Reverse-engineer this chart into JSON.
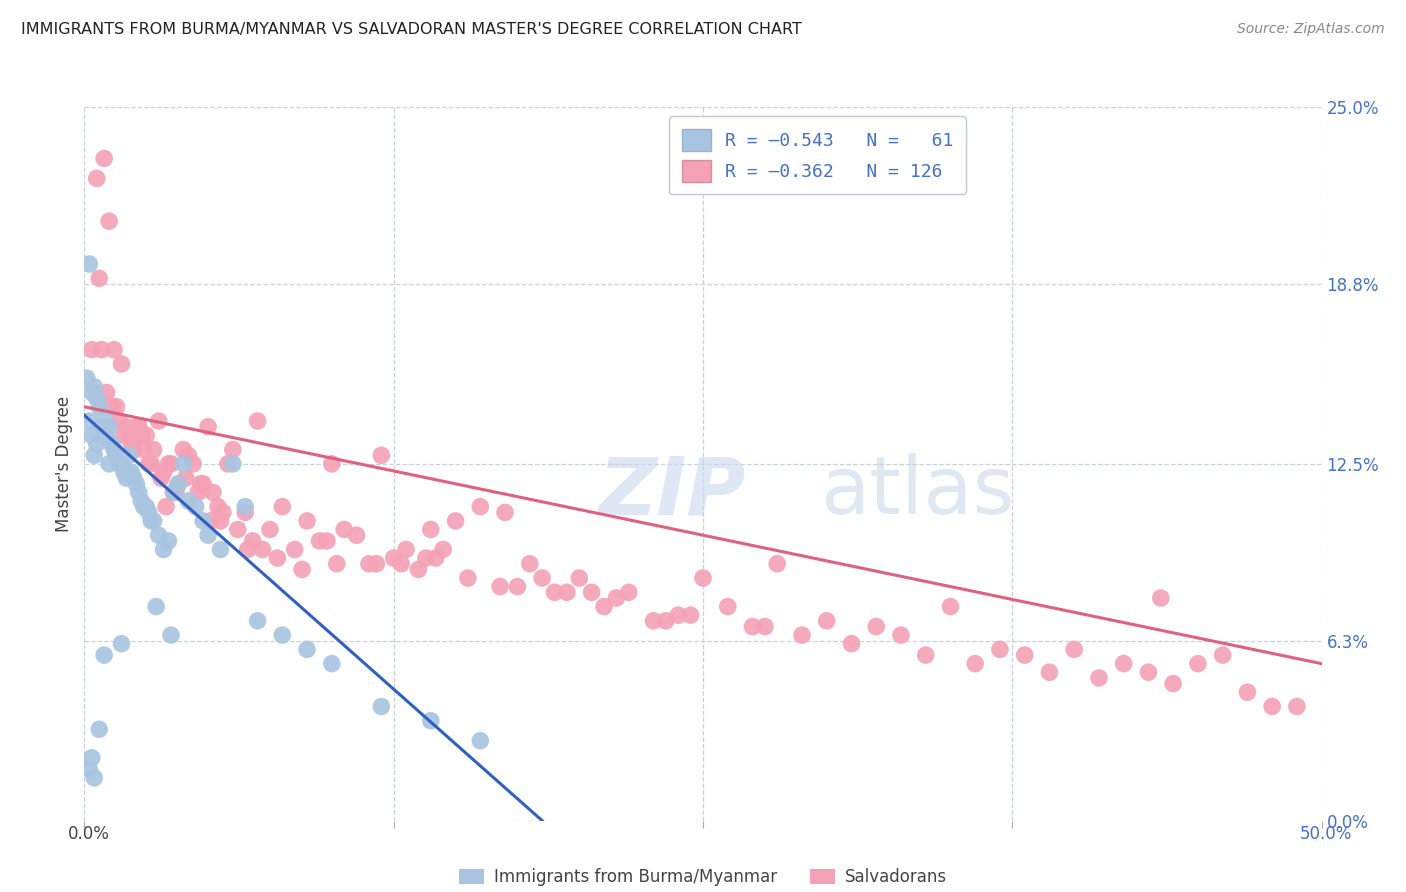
{
  "title": "IMMIGRANTS FROM BURMA/MYANMAR VS SALVADORAN MASTER'S DEGREE CORRELATION CHART",
  "source": "Source: ZipAtlas.com",
  "ylabel": "Master's Degree",
  "ytick_values": [
    0.0,
    6.3,
    12.5,
    18.8,
    25.0
  ],
  "ytick_labels": [
    "0.0%",
    "6.3%",
    "12.5%",
    "18.8%",
    "25.0%"
  ],
  "xlim": [
    0.0,
    50.0
  ],
  "ylim": [
    0.0,
    25.0
  ],
  "blue_color": "#a8c4e0",
  "pink_color": "#f4a0b5",
  "blue_line_color": "#3060c0",
  "pink_line_color": "#e06080",
  "blue_scatter_x": [
    0.1,
    0.2,
    0.2,
    0.3,
    0.3,
    0.4,
    0.4,
    0.5,
    0.5,
    0.6,
    0.7,
    0.8,
    0.9,
    1.0,
    1.0,
    1.1,
    1.2,
    1.3,
    1.4,
    1.5,
    1.6,
    1.7,
    1.8,
    1.9,
    2.0,
    2.1,
    2.2,
    2.3,
    2.4,
    2.5,
    2.6,
    2.7,
    2.8,
    3.0,
    3.2,
    3.4,
    3.6,
    3.8,
    4.0,
    4.2,
    4.5,
    5.0,
    5.5,
    6.0,
    6.5,
    7.0,
    8.0,
    9.0,
    10.0,
    12.0,
    14.0,
    16.0,
    3.5,
    4.8,
    2.9,
    1.5,
    0.8,
    0.6,
    0.3,
    0.2,
    0.4
  ],
  "blue_scatter_y": [
    15.5,
    19.5,
    14.0,
    15.0,
    13.5,
    15.2,
    12.8,
    14.8,
    13.2,
    14.5,
    13.8,
    14.2,
    13.5,
    13.8,
    12.5,
    13.2,
    13.0,
    12.8,
    12.5,
    12.5,
    12.2,
    12.0,
    12.8,
    12.2,
    12.0,
    11.8,
    11.5,
    11.2,
    11.0,
    11.0,
    10.8,
    10.5,
    10.5,
    10.0,
    9.5,
    9.8,
    11.5,
    11.8,
    12.5,
    11.2,
    11.0,
    10.0,
    9.5,
    12.5,
    11.0,
    7.0,
    6.5,
    6.0,
    5.5,
    4.0,
    3.5,
    2.8,
    6.5,
    10.5,
    7.5,
    6.2,
    5.8,
    3.2,
    2.2,
    1.8,
    1.5
  ],
  "pink_scatter_x": [
    0.3,
    0.5,
    0.6,
    0.8,
    0.9,
    1.0,
    1.1,
    1.2,
    1.3,
    1.5,
    1.6,
    1.7,
    1.8,
    1.9,
    2.0,
    2.1,
    2.2,
    2.4,
    2.5,
    2.6,
    2.8,
    3.0,
    3.1,
    3.2,
    3.4,
    3.5,
    3.6,
    3.8,
    4.0,
    4.2,
    4.4,
    4.6,
    4.8,
    5.0,
    5.2,
    5.4,
    5.6,
    5.8,
    6.0,
    6.5,
    7.0,
    7.5,
    8.0,
    8.5,
    9.0,
    9.5,
    10.0,
    10.5,
    11.0,
    11.5,
    12.0,
    12.5,
    13.0,
    13.5,
    14.0,
    14.5,
    15.0,
    16.0,
    17.0,
    18.0,
    19.0,
    20.0,
    21.0,
    22.0,
    23.0,
    24.0,
    25.0,
    26.0,
    27.0,
    28.0,
    30.0,
    32.0,
    33.0,
    35.0,
    37.0,
    38.0,
    40.0,
    42.0,
    43.0,
    44.0,
    45.0,
    46.0,
    47.0,
    48.0,
    49.0,
    3.3,
    4.1,
    5.5,
    6.8,
    7.8,
    8.8,
    9.8,
    11.8,
    13.8,
    15.5,
    17.5,
    19.5,
    21.5,
    23.5,
    2.3,
    1.4,
    0.7,
    4.7,
    6.2,
    16.8,
    18.5,
    29.0,
    34.0,
    39.0,
    43.5,
    2.7,
    3.7,
    5.1,
    6.6,
    7.2,
    10.2,
    12.8,
    14.2,
    20.5,
    41.0,
    36.0,
    31.0,
    27.5,
    24.5
  ],
  "pink_scatter_y": [
    16.5,
    22.5,
    19.0,
    23.2,
    15.0,
    21.0,
    14.5,
    16.5,
    14.5,
    16.0,
    13.5,
    13.8,
    13.5,
    13.2,
    13.0,
    13.8,
    13.8,
    13.0,
    13.5,
    12.5,
    13.0,
    14.0,
    12.0,
    12.2,
    12.5,
    12.5,
    11.5,
    11.8,
    13.0,
    12.8,
    12.5,
    11.5,
    11.8,
    13.8,
    11.5,
    11.0,
    10.8,
    12.5,
    13.0,
    10.8,
    14.0,
    10.2,
    11.0,
    9.5,
    10.5,
    9.8,
    12.5,
    10.2,
    10.0,
    9.0,
    12.8,
    9.2,
    9.5,
    8.8,
    10.2,
    9.5,
    10.5,
    11.0,
    10.8,
    9.0,
    8.0,
    8.5,
    7.5,
    8.0,
    7.0,
    7.2,
    8.5,
    7.5,
    6.8,
    9.0,
    7.0,
    6.8,
    6.5,
    7.5,
    6.0,
    5.8,
    6.0,
    5.5,
    5.2,
    4.8,
    5.5,
    5.8,
    4.5,
    4.0,
    4.0,
    11.0,
    12.0,
    10.5,
    9.8,
    9.2,
    8.8,
    9.8,
    9.0,
    9.2,
    8.5,
    8.2,
    8.0,
    7.8,
    7.0,
    13.5,
    14.0,
    16.5,
    11.8,
    10.2,
    8.2,
    8.5,
    6.5,
    5.8,
    5.2,
    7.8,
    12.5,
    11.5,
    10.5,
    9.5,
    9.5,
    9.0,
    9.0,
    9.2,
    8.0,
    5.0,
    5.5,
    6.2,
    6.8,
    7.2
  ],
  "blue_line_x": [
    0.0,
    18.5
  ],
  "blue_line_y": [
    14.2,
    0.0
  ],
  "pink_line_x": [
    0.0,
    50.0
  ],
  "pink_line_y": [
    14.5,
    5.5
  ]
}
